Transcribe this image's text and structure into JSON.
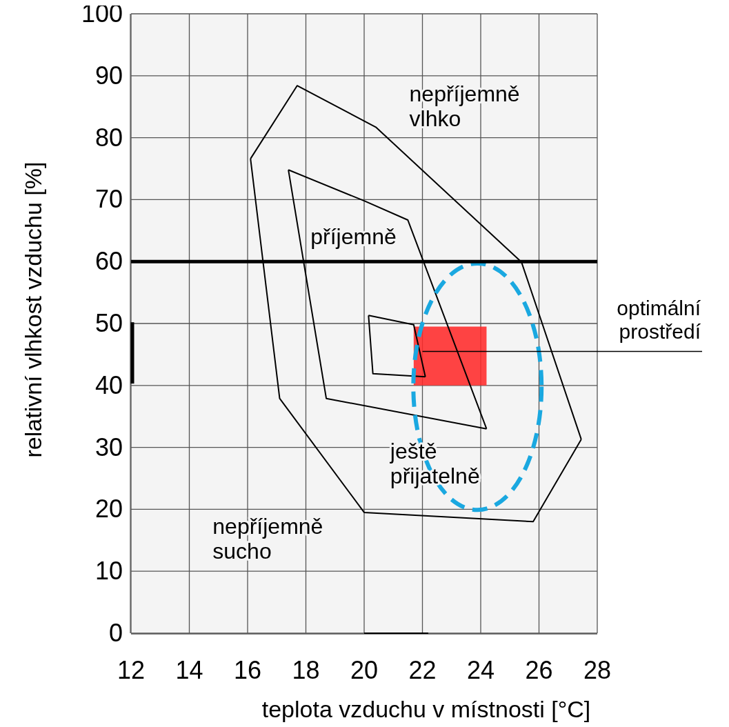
{
  "chart_data": {
    "type": "line",
    "xlabel": "teplota vzduchu v místnosti [°C]",
    "ylabel": "relativní vlhkost vzduchu [%]",
    "xlim": [
      12,
      28
    ],
    "ylim": [
      0,
      100
    ],
    "xticks": [
      12,
      14,
      16,
      18,
      20,
      22,
      24,
      26,
      28
    ],
    "yticks": [
      0,
      10,
      20,
      30,
      40,
      50,
      60,
      70,
      80,
      90,
      100
    ],
    "grid": true,
    "series": [
      {
        "color": "#000000",
        "x": [
          16.1,
          17.7,
          20.4,
          25.4,
          27.45
        ],
        "values": [
          76.6,
          88.4,
          81.7,
          59.9,
          31.3
        ]
      },
      {
        "color": "#000000",
        "x": [
          16.1,
          17.1,
          20.0,
          25.8,
          27.45
        ],
        "values": [
          76.6,
          37.9,
          19.5,
          18.0,
          31.3
        ]
      },
      {
        "color": "#000000",
        "x": [
          17.4,
          20.0,
          21.5,
          24.2
        ],
        "values": [
          74.8,
          69.8,
          66.7,
          33.0
        ]
      },
      {
        "color": "#000000",
        "x": [
          17.4,
          18.7,
          24.2
        ],
        "values": [
          74.8,
          37.9,
          33.0
        ]
      },
      {
        "color": "#000000",
        "x": [
          20.15,
          21.7,
          22.1
        ],
        "values": [
          51.3,
          49.8,
          41.4
        ]
      },
      {
        "color": "#000000",
        "x": [
          20.15,
          20.3,
          22.1
        ],
        "values": [
          51.3,
          41.9,
          41.4
        ]
      },
      {
        "color": "#000000",
        "x": [
          20.0,
          22.2
        ],
        "values": [
          0,
          0
        ]
      },
      {
        "color": "#000000",
        "x": [
          12,
          12
        ],
        "values": [
          40.3,
          50.2
        ]
      },
      {
        "color": "#ff2a2a",
        "x": [
          21.7,
          24.2
        ],
        "values": [
          null,
          null
        ],
        "lower": [
          40,
          40
        ],
        "upper": [
          49.5,
          49.5
        ]
      }
    ],
    "ref_lines": [
      {
        "axis": "y",
        "value": 60,
        "color": "#000000"
      }
    ],
    "annotations": [
      "nepříjemně\nvlhko",
      "příjemně",
      "ještě\npřijatelně",
      "nepříjemně\nsucho",
      "optimální\nprostředí"
    ]
  }
}
